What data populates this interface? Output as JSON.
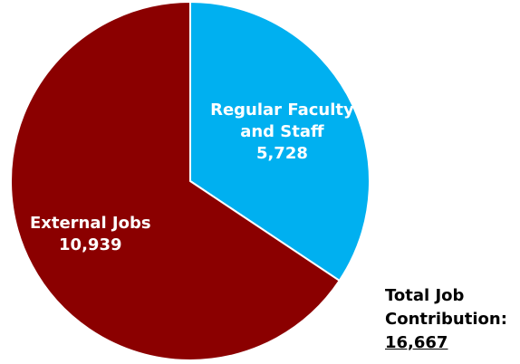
{
  "chart_data": {
    "type": "pie",
    "categories": [
      "Regular Faculty and Staff",
      "External Jobs"
    ],
    "values": [
      5728,
      10939
    ],
    "value_labels": [
      "5,728",
      "10,939"
    ],
    "colors": [
      "#00b0f0",
      "#8b0000"
    ],
    "total_label": "Total Job Contribution:",
    "total": {
      "value": 16667,
      "label": "16,667"
    }
  }
}
